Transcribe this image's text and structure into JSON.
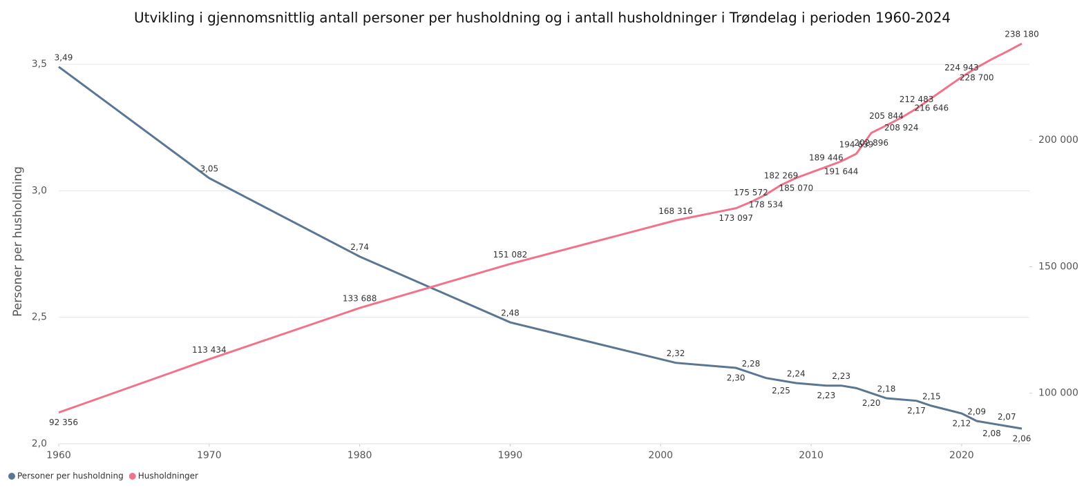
{
  "chart_data": {
    "type": "line",
    "title": "Utvikling i gjennomsnittlig antall personer per husholdning og i antall husholdninger i Trøndelag i perioden 1960-2024",
    "ylabel": "Personer per husholdning",
    "x": [
      1960,
      1970,
      1980,
      1990,
      2001,
      2005,
      2006,
      2007,
      2008,
      2009,
      2011,
      2012,
      2013,
      2014,
      2015,
      2016,
      2017,
      2018,
      2019,
      2020,
      2021,
      2022,
      2023,
      2024
    ],
    "xlim": [
      1960,
      2024
    ],
    "xticks": [
      1960,
      1970,
      1980,
      1990,
      2000,
      2010,
      2020
    ],
    "ylim": [
      2.0,
      3.585
    ],
    "yticks": [
      {
        "value": 2.0,
        "label": "2,0"
      },
      {
        "value": 2.5,
        "label": "2,5"
      },
      {
        "value": 3.0,
        "label": "3,0"
      },
      {
        "value": 3.5,
        "label": "3,5"
      }
    ],
    "y2lim": [
      80000,
      238500
    ],
    "y2ticks": [
      {
        "value": 100000,
        "label": "100 000"
      },
      {
        "value": 150000,
        "label": "150 000"
      },
      {
        "value": 200000,
        "label": "200 000"
      }
    ],
    "grid": true,
    "legend": "bottom-left",
    "series": [
      {
        "name": "Personer per husholdning",
        "color": "#5a7693",
        "values": [
          3.49,
          3.05,
          2.74,
          2.48,
          2.32,
          2.3,
          2.28,
          2.26,
          2.25,
          2.24,
          2.23,
          2.23,
          2.22,
          2.2,
          2.18,
          2.175,
          2.17,
          2.15,
          2.135,
          2.12,
          2.09,
          2.08,
          2.07,
          2.06
        ],
        "value_labels": [
          "3,49",
          "3,05",
          "2,74",
          "2,48",
          "2,32",
          "2,30",
          "2,28",
          null,
          "2,25",
          "2,24",
          "2,23",
          "2,23",
          null,
          "2,20",
          "2,18",
          null,
          "2,17",
          "2,15",
          null,
          "2,12",
          "2,09",
          "2,08",
          "2,07",
          "2,06"
        ]
      },
      {
        "name": "Husholdninger",
        "color": "#f0738a",
        "axis": "y2",
        "values": [
          92356,
          113434,
          133688,
          151082,
          168316,
          173097,
          175572,
          178534,
          182269,
          185070,
          189446,
          191644,
          194639,
          202896,
          205844,
          208924,
          212483,
          216646,
          220800,
          224943,
          228700,
          232000,
          235000,
          238180
        ],
        "value_labels": [
          "92 356",
          "113 434",
          "133 688",
          "151 082",
          "168 316",
          "173 097",
          "175 572",
          "178 534",
          "182 269",
          "185 070",
          "189 446",
          "191 644",
          "194 639",
          "202 896",
          "205 844",
          "208 924",
          "212 483",
          "216 646",
          null,
          "224 943",
          "228 700",
          null,
          null,
          "238 180"
        ]
      }
    ]
  }
}
